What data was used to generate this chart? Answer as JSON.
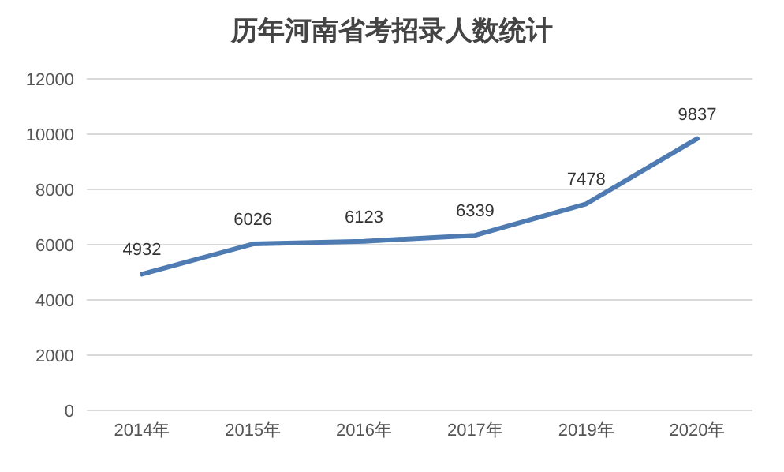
{
  "chart_data": {
    "type": "line",
    "title": "历年河南省考招录人数统计",
    "categories": [
      "2014年",
      "2015年",
      "2016年",
      "2017年",
      "2019年",
      "2020年"
    ],
    "series": [
      {
        "color": "#4f7bb3",
        "values": [
          4932,
          6026,
          6123,
          6339,
          7478,
          9837
        ]
      }
    ],
    "ylim": [
      0,
      12000
    ],
    "yticks": [
      0,
      2000,
      4000,
      6000,
      8000,
      10000,
      12000
    ],
    "grid": "y",
    "data_labels": true,
    "marker": "none",
    "line_style": "solid",
    "legend": false
  }
}
